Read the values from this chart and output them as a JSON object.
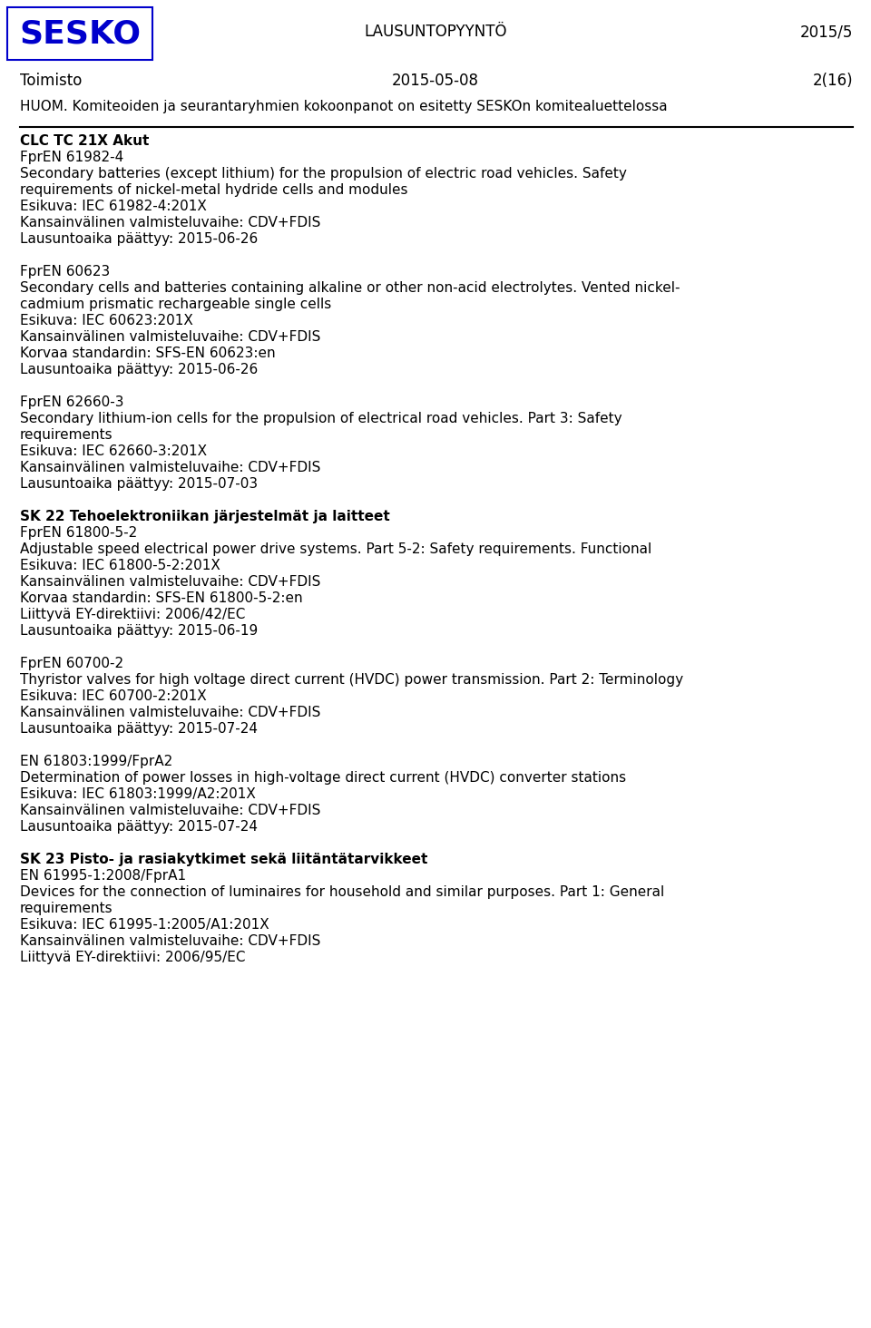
{
  "bg_color": "#ffffff",
  "text_color": "#000000",
  "logo_color": "#0000CC",
  "logo_text": "SESKO",
  "header_center": "LAUSUNTOPYYNTÖ",
  "header_right": "2015/5",
  "row2_left": "Toimisto",
  "row2_center": "2015-05-08",
  "row2_right": "2(16)",
  "huom_text": "HUOM. Komiteoiden ja seurantaryhmien kokoonpanot on esitetty SESKOn komitealuettelossa",
  "sections": [
    {
      "heading": "CLC TC 21X Akut",
      "heading_bold": true,
      "items": [
        {
          "text": "FprEN 61982-4",
          "bold": false
        },
        {
          "text": "Secondary batteries (except lithium) for the propulsion of electric road vehicles. Safety",
          "bold": false
        },
        {
          "text": "requirements of nickel-metal hydride cells and modules",
          "bold": false
        },
        {
          "text": "Esikuva: IEC 61982-4:201X",
          "bold": false
        },
        {
          "text": "Kansainvälinen valmisteluvaihe: CDV+FDIS",
          "bold": false
        },
        {
          "text": "Lausuntoaika päättyy: 2015-06-26",
          "bold": false
        }
      ]
    },
    {
      "heading": "",
      "heading_bold": false,
      "items": [
        {
          "text": "FprEN 60623",
          "bold": false
        },
        {
          "text": "Secondary cells and batteries containing alkaline or other non-acid electrolytes. Vented nickel-",
          "bold": false
        },
        {
          "text": "cadmium prismatic rechargeable single cells",
          "bold": false
        },
        {
          "text": "Esikuva: IEC 60623:201X",
          "bold": false
        },
        {
          "text": "Kansainvälinen valmisteluvaihe: CDV+FDIS",
          "bold": false
        },
        {
          "text": "Korvaa standardin: SFS-EN 60623:en",
          "bold": false
        },
        {
          "text": "Lausuntoaika päättyy: 2015-06-26",
          "bold": false
        }
      ]
    },
    {
      "heading": "",
      "heading_bold": false,
      "items": [
        {
          "text": "FprEN 62660-3",
          "bold": false
        },
        {
          "text": "Secondary lithium-ion cells for the propulsion of electrical road vehicles. Part 3: Safety",
          "bold": false
        },
        {
          "text": "requirements",
          "bold": false
        },
        {
          "text": "Esikuva: IEC 62660-3:201X",
          "bold": false
        },
        {
          "text": "Kansainvälinen valmisteluvaihe: CDV+FDIS",
          "bold": false
        },
        {
          "text": "Lausuntoaika päättyy: 2015-07-03",
          "bold": false
        }
      ]
    },
    {
      "heading": "SK 22 Tehoelektroniikan järjestelmät ja laitteet",
      "heading_bold": true,
      "items": [
        {
          "text": "FprEN 61800-5-2",
          "bold": false
        },
        {
          "text": "Adjustable speed electrical power drive systems. Part 5-2: Safety requirements. Functional",
          "bold": false
        },
        {
          "text": "Esikuva: IEC 61800-5-2:201X",
          "bold": false
        },
        {
          "text": "Kansainvälinen valmisteluvaihe: CDV+FDIS",
          "bold": false
        },
        {
          "text": "Korvaa standardin: SFS-EN 61800-5-2:en",
          "bold": false
        },
        {
          "text": "Liittyvä EY-direktiivi: 2006/42/EC",
          "bold": false
        },
        {
          "text": "Lausuntoaika päättyy: 2015-06-19",
          "bold": false
        }
      ]
    },
    {
      "heading": "",
      "heading_bold": false,
      "items": [
        {
          "text": "FprEN 60700-2",
          "bold": false
        },
        {
          "text": "Thyristor valves for high voltage direct current (HVDC) power transmission. Part 2: Terminology",
          "bold": false
        },
        {
          "text": "Esikuva: IEC 60700-2:201X",
          "bold": false
        },
        {
          "text": "Kansainvälinen valmisteluvaihe: CDV+FDIS",
          "bold": false
        },
        {
          "text": "Lausuntoaika päättyy: 2015-07-24",
          "bold": false
        }
      ]
    },
    {
      "heading": "",
      "heading_bold": false,
      "items": [
        {
          "text": "EN 61803:1999/FprA2",
          "bold": false
        },
        {
          "text": "Determination of power losses in high-voltage direct current (HVDC) converter stations",
          "bold": false
        },
        {
          "text": "Esikuva: IEC 61803:1999/A2:201X",
          "bold": false
        },
        {
          "text": "Kansainvälinen valmisteluvaihe: CDV+FDIS",
          "bold": false
        },
        {
          "text": "Lausuntoaika päättyy: 2015-07-24",
          "bold": false
        }
      ]
    },
    {
      "heading": "SK 23 Pisto- ja rasiakytkimet sekä liitäntätarvikkeet",
      "heading_bold": true,
      "items": [
        {
          "text": "EN 61995-1:2008/FprA1",
          "bold": false
        },
        {
          "text": "Devices for the connection of luminaires for household and similar purposes. Part 1: General",
          "bold": false
        },
        {
          "text": "requirements",
          "bold": false
        },
        {
          "text": "Esikuva: IEC 61995-1:2005/A1:201X",
          "bold": false
        },
        {
          "text": "Kansainvälinen valmisteluvaihe: CDV+FDIS",
          "bold": false
        },
        {
          "text": "Liittyvä EY-direktiivi: 2006/95/EC",
          "bold": false
        }
      ]
    }
  ]
}
